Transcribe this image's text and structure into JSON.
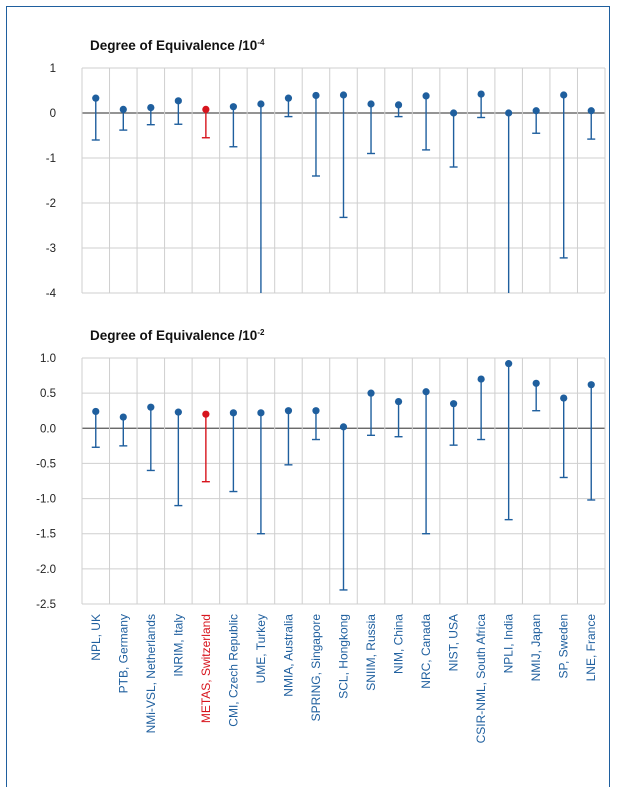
{
  "colors": {
    "bar": "#1f5f9e",
    "highlight": "#d7141d",
    "grid": "#cfcfcf",
    "zero_line": "#555555"
  },
  "chart_data": [
    {
      "type": "scatter",
      "title": "Degree of Equivalence /10",
      "title_exponent": "-4",
      "ylim": [
        -4,
        1
      ],
      "yticks": [
        "1",
        "0",
        "-1",
        "-2",
        "-3",
        "-4"
      ],
      "ytick_values": [
        1,
        0,
        -1,
        -2,
        -3,
        -4
      ],
      "grid": true,
      "categories": [
        "NPL, UK",
        "PTB, Germany",
        "NMi-VSL, Netherlands",
        "INRIM, Italy",
        "METAS, Switzerland",
        "CMI, Czech Republic",
        "UME, Turkey",
        "NMIA, Australia",
        "SPRING, Singapore",
        "SCL, Hongkong",
        "SNIIM, Russia",
        "NIM, China",
        "NRC, Canada",
        "NIST, USA",
        "CSIR-NML, South Africa",
        "NPLI, India",
        "NMIJ, Japan",
        "SP, Sweden",
        "LNE, France"
      ],
      "values": [
        0.33,
        0.08,
        0.12,
        0.27,
        0.08,
        0.14,
        0.2,
        0.33,
        0.39,
        0.4,
        0.2,
        0.18,
        0.38,
        0.0,
        0.42,
        0.0,
        0.05,
        0.4,
        0.05
      ],
      "err_low": [
        -0.6,
        -0.38,
        -0.26,
        -0.25,
        -0.55,
        -0.75,
        -4.0,
        -0.08,
        -1.4,
        -2.32,
        -0.9,
        -0.08,
        -0.82,
        -1.2,
        -0.1,
        -4.0,
        -0.45,
        -3.22,
        -0.58
      ],
      "highlight_index": 4
    },
    {
      "type": "scatter",
      "title": "Degree of Equivalence /10",
      "title_exponent": "-2",
      "ylim": [
        -2.5,
        1.0
      ],
      "yticks": [
        "1.0",
        "0.5",
        "0.0",
        "-0.5",
        "-1.0",
        "-1.5",
        "-2.0",
        "-2.5"
      ],
      "ytick_values": [
        1.0,
        0.5,
        0.0,
        -0.5,
        -1.0,
        -1.5,
        -2.0,
        -2.5
      ],
      "grid": true,
      "categories": [
        "NPL, UK",
        "PTB, Germany",
        "NMi-VSL, Netherlands",
        "INRIM, Italy",
        "METAS, Switzerland",
        "CMI, Czech Republic",
        "UME, Turkey",
        "NMIA, Australia",
        "SPRING, Singapore",
        "SCL, Hongkong",
        "SNIIM, Russia",
        "NIM, China",
        "NRC, Canada",
        "NIST, USA",
        "CSIR-NML, South Africa",
        "NPLI, India",
        "NMIJ, Japan",
        "SP, Sweden",
        "LNE, France"
      ],
      "values": [
        0.24,
        0.16,
        0.3,
        0.23,
        0.2,
        0.22,
        0.22,
        0.25,
        0.25,
        0.02,
        0.5,
        0.38,
        0.52,
        0.35,
        0.7,
        0.92,
        0.64,
        0.43,
        0.62
      ],
      "err_low": [
        -0.27,
        -0.25,
        -0.6,
        -1.1,
        -0.76,
        -0.9,
        -1.5,
        -0.52,
        -0.16,
        -2.3,
        -0.1,
        -0.12,
        -1.5,
        -0.24,
        -0.16,
        -1.3,
        0.25,
        -0.7,
        -1.02
      ],
      "highlight_index": 4
    }
  ]
}
